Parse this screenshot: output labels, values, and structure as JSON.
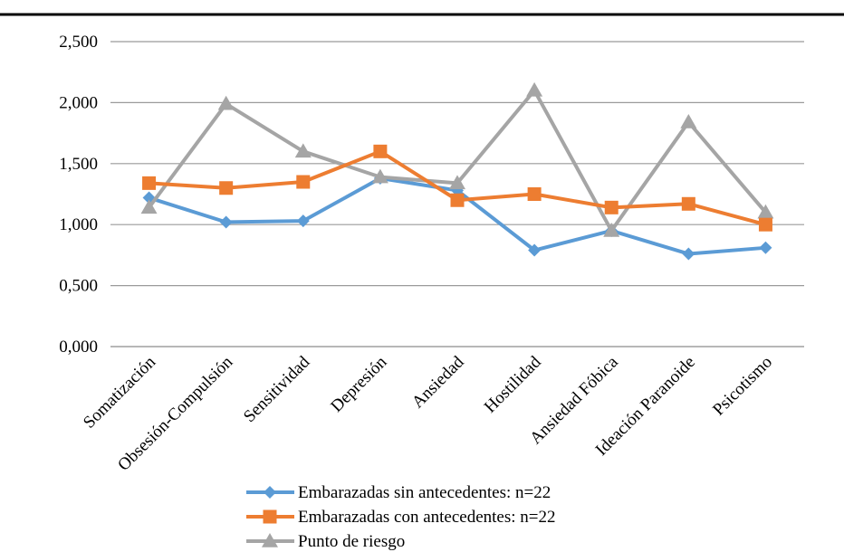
{
  "chart_data": {
    "type": "line",
    "title": "",
    "xlabel": "",
    "ylabel": "",
    "ylim": [
      0,
      2.5
    ],
    "yticks": [
      "0,000",
      "0,500",
      "1,000",
      "1,500",
      "2,000",
      "2,500"
    ],
    "categories": [
      "Somatización",
      "Obsesión-Compulsión",
      "Sensitividad",
      "Depresión",
      "Ansiedad",
      "Hostilidad",
      "Ansiedad Fóbica",
      "Ideación Paranoide",
      "Psicotismo"
    ],
    "grid": true,
    "legend_position": "bottom",
    "series": [
      {
        "name": "Embarazadas sin antecedentes: n=22",
        "color": "#5b9bd5",
        "marker": "diamond",
        "values": [
          1.22,
          1.02,
          1.03,
          1.38,
          1.28,
          0.79,
          0.95,
          0.76,
          0.81
        ]
      },
      {
        "name": "Embarazadas con antecedentes: n=22",
        "color": "#ed7d31",
        "marker": "square",
        "values": [
          1.34,
          1.3,
          1.35,
          1.6,
          1.2,
          1.25,
          1.14,
          1.17,
          1.0
        ]
      },
      {
        "name": "Punto de riesgo",
        "color": "#a5a5a5",
        "marker": "triangle",
        "values": [
          1.14,
          1.99,
          1.6,
          1.39,
          1.34,
          2.1,
          0.95,
          1.84,
          1.1
        ]
      }
    ]
  }
}
